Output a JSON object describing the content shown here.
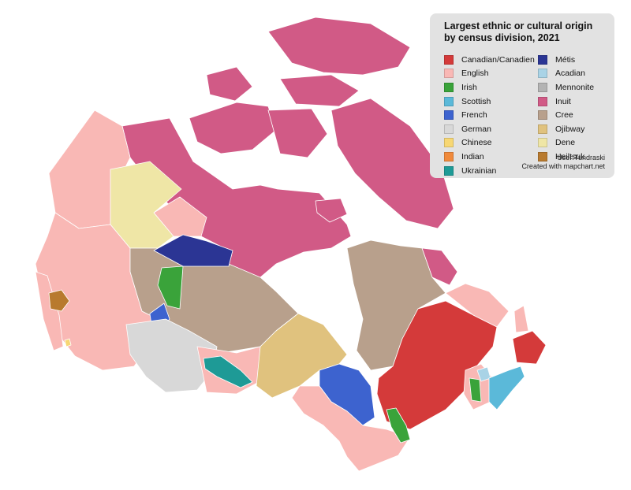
{
  "legend": {
    "title": "Largest ethnic or cultural origin by census division, 2021",
    "left_items": [
      {
        "label": "Canadian/Canadien",
        "color": "#d43a3a"
      },
      {
        "label": "English",
        "color": "#f9b8b5"
      },
      {
        "label": "Irish",
        "color": "#3aa33a"
      },
      {
        "label": "Scottish",
        "color": "#5bb9d9"
      },
      {
        "label": "French",
        "color": "#3d63cf"
      },
      {
        "label": "German",
        "color": "#d8d8d8"
      },
      {
        "label": "Chinese",
        "color": "#f7d774"
      },
      {
        "label": "Indian",
        "color": "#f08a3c"
      },
      {
        "label": "Ukrainian",
        "color": "#1e9a96"
      }
    ],
    "right_items": [
      {
        "label": "Métis",
        "color": "#2b3594"
      },
      {
        "label": "Acadian",
        "color": "#a9d3e6"
      },
      {
        "label": "Mennonite",
        "color": "#b3b3b3"
      },
      {
        "label": "Inuit",
        "color": "#d15a86"
      },
      {
        "label": "Cree",
        "color": "#b8a08c"
      },
      {
        "label": "Ojibway",
        "color": "#e0c27e"
      },
      {
        "label": "Dene",
        "color": "#efe6a6"
      },
      {
        "label": "Heiltsuk",
        "color": "#b87a2e"
      }
    ],
    "credit_user": "User:Tundraski",
    "credit_tool": "Created with mapchart.net"
  },
  "map_regions": [
    {
      "name": "yukon",
      "origin": "English"
    },
    {
      "name": "british-columbia",
      "origin": "English"
    },
    {
      "name": "northwest-territories-south",
      "origin": "Dene"
    },
    {
      "name": "great-bear-area",
      "origin": "English"
    },
    {
      "name": "nunavut",
      "origin": "Inuit"
    },
    {
      "name": "nunavik",
      "origin": "Inuit"
    },
    {
      "name": "northern-saskatchewan",
      "origin": "Métis"
    },
    {
      "name": "northern-alberta",
      "origin": "Irish"
    },
    {
      "name": "northern-manitoba",
      "origin": "Cree"
    },
    {
      "name": "northern-quebec",
      "origin": "Cree"
    },
    {
      "name": "northern-ontario",
      "origin": "Ojibway"
    },
    {
      "name": "southern-quebec",
      "origin": "Canadian/Canadien"
    },
    {
      "name": "labrador",
      "origin": "English"
    },
    {
      "name": "newfoundland",
      "origin": "Canadian/Canadien"
    },
    {
      "name": "nova-scotia",
      "origin": "Scottish"
    },
    {
      "name": "prairies-south",
      "origin": "German"
    },
    {
      "name": "south-manitoba-belt",
      "origin": "Ukrainian"
    },
    {
      "name": "northeastern-ontario",
      "origin": "French"
    },
    {
      "name": "southern-ontario",
      "origin": "English"
    },
    {
      "name": "ottawa-valley",
      "origin": "Irish"
    },
    {
      "name": "heiltsuk-coast",
      "origin": "Heiltsuk"
    }
  ]
}
